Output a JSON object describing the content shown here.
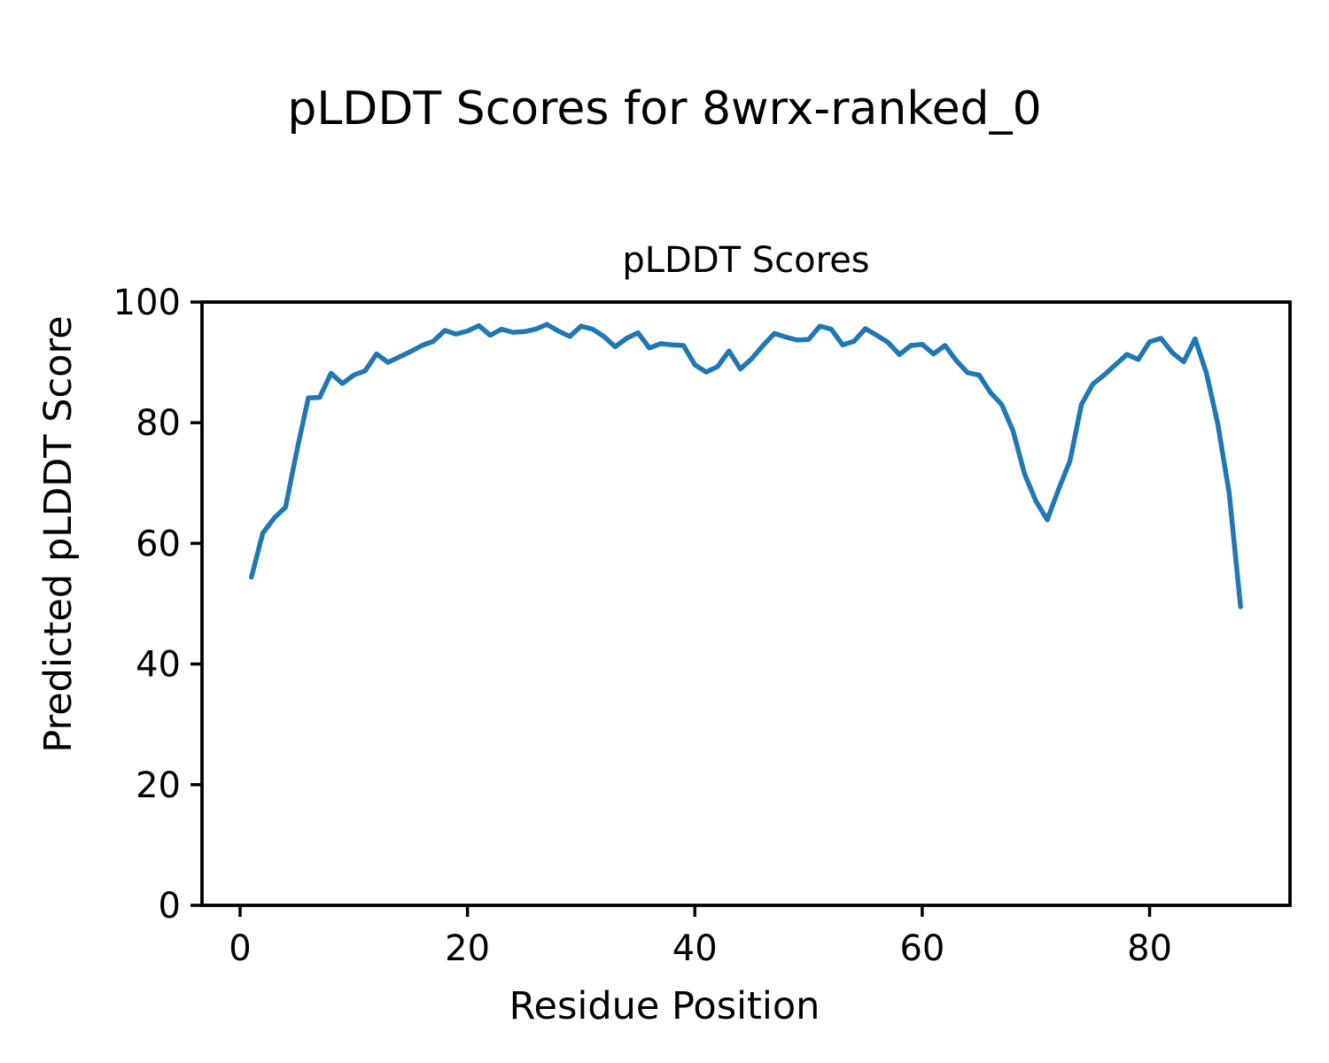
{
  "figure": {
    "suptitle": "pLDDT Scores for 8wrx-ranked_0"
  },
  "chart_data": {
    "type": "line",
    "title": "pLDDT Scores",
    "xlabel": "Residue Position",
    "ylabel": "Predicted pLDDT Score",
    "xlim": [
      -3.35,
      92.35
    ],
    "ylim": [
      0,
      100
    ],
    "xticks": [
      0,
      20,
      40,
      60,
      80
    ],
    "yticks": [
      0,
      20,
      40,
      60,
      80,
      100
    ],
    "grid": false,
    "legend_position": "none",
    "line_color": "#1f77b4",
    "line_width": 5.5,
    "series": [
      {
        "name": "pLDDT",
        "x": [
          1,
          2,
          3,
          4,
          5,
          6,
          7,
          8,
          9,
          10,
          11,
          12,
          13,
          14,
          15,
          16,
          17,
          18,
          19,
          20,
          21,
          22,
          23,
          24,
          25,
          26,
          27,
          28,
          29,
          30,
          31,
          32,
          33,
          34,
          35,
          36,
          37,
          38,
          39,
          40,
          41,
          42,
          43,
          44,
          45,
          46,
          47,
          48,
          49,
          50,
          51,
          52,
          53,
          54,
          55,
          56,
          57,
          58,
          59,
          60,
          61,
          62,
          63,
          64,
          65,
          66,
          67,
          68,
          69,
          70,
          71,
          72,
          73,
          74,
          75,
          76,
          77,
          78,
          79,
          80,
          81,
          82,
          83,
          84,
          85,
          86,
          87,
          88
        ],
        "values": [
          54.4,
          61.7,
          64.2,
          66.0,
          75.4,
          84.1,
          84.2,
          88.2,
          86.5,
          87.9,
          88.6,
          91.4,
          90.0,
          90.9,
          91.8,
          92.8,
          93.5,
          95.3,
          94.7,
          95.2,
          96.1,
          94.5,
          95.5,
          95.0,
          95.1,
          95.5,
          96.3,
          95.2,
          94.3,
          96.0,
          95.5,
          94.3,
          92.6,
          94.0,
          94.9,
          92.4,
          93.1,
          92.9,
          92.8,
          89.6,
          88.4,
          89.3,
          91.9,
          88.9,
          90.6,
          92.8,
          94.8,
          94.2,
          93.7,
          93.8,
          96.0,
          95.5,
          92.9,
          93.5,
          95.6,
          94.5,
          93.3,
          91.3,
          92.8,
          93.0,
          91.4,
          92.8,
          90.3,
          88.3,
          87.9,
          85.0,
          83.0,
          78.6,
          71.5,
          67.0,
          63.9,
          69.0,
          73.7,
          83.0,
          86.4,
          87.9,
          89.6,
          91.3,
          90.5,
          93.4,
          94.0,
          91.6,
          90.1,
          93.9,
          88.2,
          79.8,
          68.3,
          49.5
        ]
      }
    ]
  }
}
